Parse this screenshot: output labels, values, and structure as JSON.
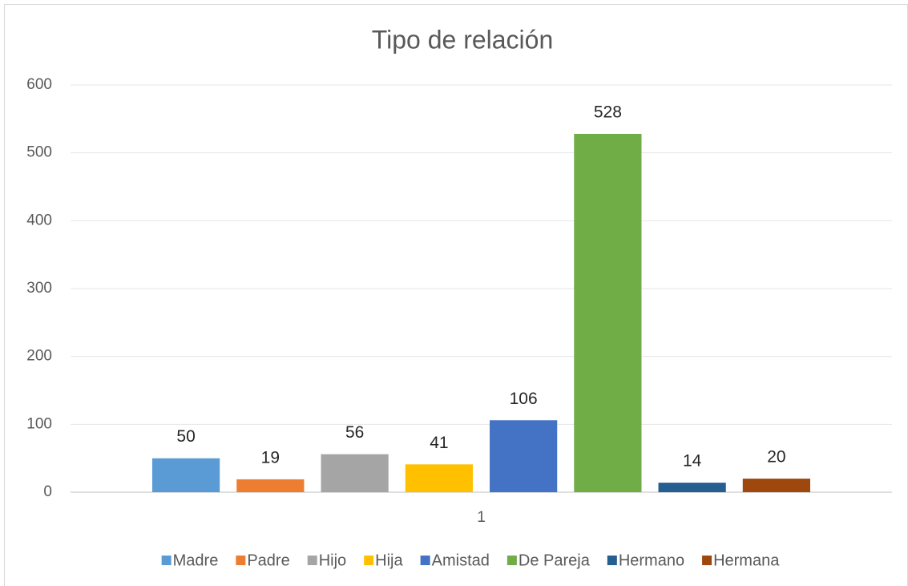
{
  "chart_data": {
    "type": "bar",
    "title": "Tipo de relación",
    "categories": [
      "1"
    ],
    "series": [
      {
        "name": "Madre",
        "color": "#5b9bd5",
        "values": [
          50
        ]
      },
      {
        "name": "Padre",
        "color": "#ed7d31",
        "values": [
          19
        ]
      },
      {
        "name": "Hijo",
        "color": "#a5a5a5",
        "values": [
          56
        ]
      },
      {
        "name": "Hija",
        "color": "#ffc000",
        "values": [
          41
        ]
      },
      {
        "name": "Amistad",
        "color": "#4472c4",
        "values": [
          106
        ]
      },
      {
        "name": "De Pareja",
        "color": "#70ad47",
        "values": [
          528
        ]
      },
      {
        "name": "Hermano",
        "color": "#255e91",
        "values": [
          14
        ]
      },
      {
        "name": "Hermana",
        "color": "#9e480e",
        "values": [
          20
        ]
      }
    ],
    "ylim": [
      0,
      600
    ],
    "yticks": [
      0,
      100,
      200,
      300,
      400,
      500,
      600
    ],
    "grid": true,
    "legend": "bottom"
  }
}
